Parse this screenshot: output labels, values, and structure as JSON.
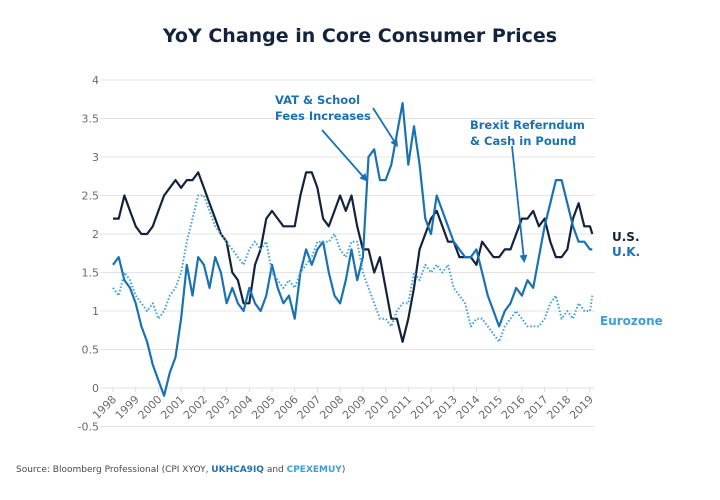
{
  "chart_data": {
    "type": "line",
    "title": "YoY Change in Core Consumer Prices",
    "xlabel": "",
    "ylabel": "",
    "ylim": [
      -0.5,
      4
    ],
    "xlim": [
      1998,
      2019.2
    ],
    "grid": true,
    "yticks": [
      "4",
      "3.5",
      "3",
      "2.5",
      "2",
      "1.5",
      "1",
      "0.5",
      "0",
      "-0.5"
    ],
    "ytick_values": [
      4,
      3.5,
      3,
      2.5,
      2,
      1.5,
      1,
      0.5,
      0,
      -0.5
    ],
    "xticks": [
      "1998",
      "1999",
      "2000",
      "2001",
      "2002",
      "2003",
      "2004",
      "2005",
      "2006",
      "2007",
      "2008",
      "2009",
      "2010",
      "2011",
      "2012",
      "2013",
      "2014",
      "2015",
      "2016",
      "2017",
      "2018",
      "2019"
    ],
    "x": [
      1998.0,
      1998.25,
      1998.5,
      1998.75,
      1999.0,
      1999.25,
      1999.5,
      1999.75,
      2000.0,
      2000.25,
      2000.5,
      2000.75,
      2001.0,
      2001.25,
      2001.5,
      2001.75,
      2002.0,
      2002.25,
      2002.5,
      2002.75,
      2003.0,
      2003.25,
      2003.5,
      2003.75,
      2004.0,
      2004.25,
      2004.5,
      2004.75,
      2005.0,
      2005.25,
      2005.5,
      2005.75,
      2006.0,
      2006.25,
      2006.5,
      2006.75,
      2007.0,
      2007.25,
      2007.5,
      2007.75,
      2008.0,
      2008.25,
      2008.5,
      2008.75,
      2009.0,
      2009.25,
      2009.5,
      2009.75,
      2010.0,
      2010.25,
      2010.5,
      2010.75,
      2011.0,
      2011.25,
      2011.5,
      2011.75,
      2012.0,
      2012.25,
      2012.5,
      2012.75,
      2013.0,
      2013.25,
      2013.5,
      2013.75,
      2014.0,
      2014.25,
      2014.5,
      2014.75,
      2015.0,
      2015.25,
      2015.5,
      2015.75,
      2016.0,
      2016.25,
      2016.5,
      2016.75,
      2017.0,
      2017.25,
      2017.5,
      2017.75,
      2018.0,
      2018.25,
      2018.5,
      2018.75,
      2019.0,
      2019.1
    ],
    "series": [
      {
        "name": "U.S.",
        "color": "#14233c",
        "style": "solid",
        "values": [
          2.2,
          2.2,
          2.5,
          2.3,
          2.1,
          2.0,
          2.0,
          2.1,
          2.3,
          2.5,
          2.6,
          2.7,
          2.6,
          2.7,
          2.7,
          2.8,
          2.6,
          2.4,
          2.2,
          2.0,
          1.9,
          1.5,
          1.4,
          1.1,
          1.1,
          1.6,
          1.8,
          2.2,
          2.3,
          2.2,
          2.1,
          2.1,
          2.1,
          2.5,
          2.8,
          2.8,
          2.6,
          2.2,
          2.1,
          2.3,
          2.5,
          2.3,
          2.5,
          2.1,
          1.8,
          1.8,
          1.5,
          1.7,
          1.3,
          0.9,
          0.9,
          0.6,
          0.9,
          1.3,
          1.8,
          2.0,
          2.2,
          2.3,
          2.1,
          1.9,
          1.9,
          1.7,
          1.7,
          1.7,
          1.6,
          1.9,
          1.8,
          1.7,
          1.7,
          1.8,
          1.8,
          2.0,
          2.2,
          2.2,
          2.3,
          2.1,
          2.2,
          1.9,
          1.7,
          1.7,
          1.8,
          2.2,
          2.4,
          2.1,
          2.1,
          2.0
        ]
      },
      {
        "name": "U.K.",
        "color": "#1a72b2",
        "style": "solid",
        "values": [
          1.6,
          1.7,
          1.4,
          1.3,
          1.1,
          0.8,
          0.6,
          0.3,
          0.1,
          -0.1,
          0.2,
          0.4,
          0.9,
          1.6,
          1.2,
          1.7,
          1.6,
          1.3,
          1.7,
          1.5,
          1.1,
          1.3,
          1.1,
          1.0,
          1.3,
          1.1,
          1.0,
          1.2,
          1.6,
          1.3,
          1.1,
          1.2,
          0.9,
          1.5,
          1.8,
          1.6,
          1.8,
          1.9,
          1.5,
          1.2,
          1.1,
          1.4,
          1.8,
          1.4,
          1.7,
          3.0,
          3.1,
          2.7,
          2.7,
          2.9,
          3.3,
          3.7,
          2.9,
          3.4,
          2.9,
          2.2,
          2.0,
          2.5,
          2.3,
          2.1,
          1.9,
          1.8,
          1.7,
          1.7,
          1.8,
          1.5,
          1.2,
          1.0,
          0.8,
          1.0,
          1.1,
          1.3,
          1.2,
          1.4,
          1.3,
          1.7,
          2.1,
          2.4,
          2.7,
          2.7,
          2.4,
          2.1,
          1.9,
          1.9,
          1.8,
          1.8
        ]
      },
      {
        "name": "Eurozone",
        "color": "#3aa0d8",
        "style": "dotted",
        "values": [
          1.3,
          1.2,
          1.5,
          1.4,
          1.2,
          1.1,
          1.0,
          1.1,
          0.9,
          1.0,
          1.2,
          1.3,
          1.5,
          1.9,
          2.2,
          2.5,
          2.5,
          2.3,
          2.1,
          2.0,
          1.9,
          1.8,
          1.7,
          1.6,
          1.8,
          1.9,
          1.8,
          1.9,
          1.5,
          1.4,
          1.3,
          1.4,
          1.3,
          1.5,
          1.6,
          1.7,
          1.9,
          1.9,
          1.9,
          2.0,
          1.8,
          1.7,
          1.9,
          1.9,
          1.5,
          1.3,
          1.1,
          0.9,
          0.9,
          0.8,
          1.0,
          1.1,
          1.1,
          1.5,
          1.4,
          1.6,
          1.5,
          1.6,
          1.5,
          1.6,
          1.3,
          1.2,
          1.1,
          0.8,
          0.9,
          0.9,
          0.8,
          0.7,
          0.6,
          0.8,
          0.9,
          1.0,
          0.9,
          0.8,
          0.8,
          0.8,
          0.9,
          1.1,
          1.2,
          0.9,
          1.0,
          0.9,
          1.1,
          1.0,
          1.0,
          1.2
        ]
      }
    ],
    "annotations": [
      {
        "text_lines": [
          "VAT & School",
          "Fees Increases"
        ],
        "points_to": [
          [
            2009.15,
            2.7
          ],
          [
            2010.5,
            3.15
          ]
        ]
      },
      {
        "text_lines": [
          "Brexit Referndum",
          "& Cash in Pound"
        ],
        "points_to": [
          [
            2016.1,
            1.65
          ]
        ]
      }
    ],
    "legend_placement": "right-inline"
  },
  "source": {
    "prefix": "Source: Bloomberg Professional (CPI XYOY, ",
    "uk_code": "UKHCA9IQ",
    "and": " and ",
    "ez_code": "CPEXEMUY",
    "suffix": ")"
  }
}
